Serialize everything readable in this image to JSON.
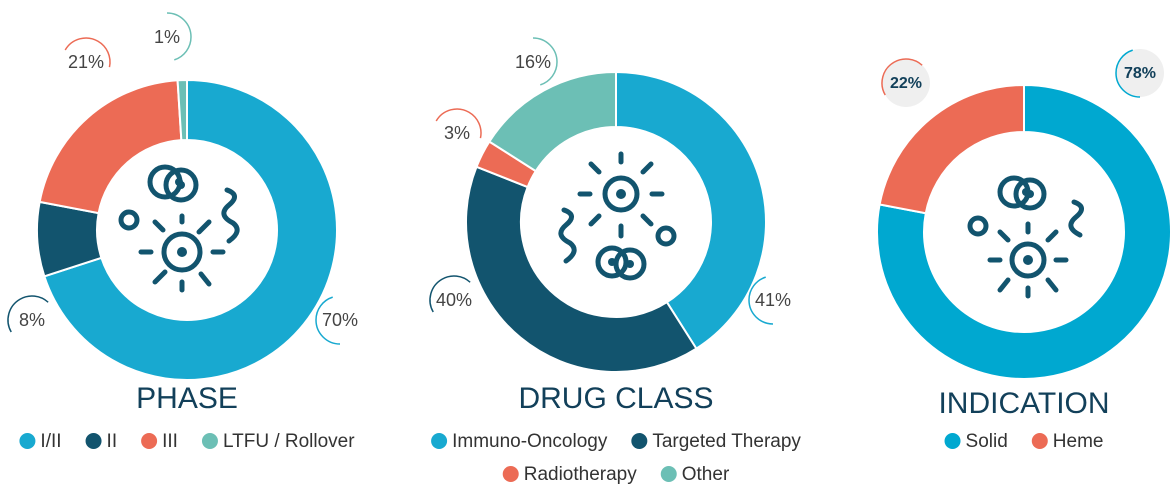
{
  "chart_data": [
    {
      "type": "donut",
      "title": "PHASE",
      "categories": [
        "I/II",
        "II",
        "III",
        "LTFU / Rollover"
      ],
      "values": [
        70,
        8,
        21,
        1
      ],
      "value_labels": [
        "70%",
        "8%",
        "21%",
        "1%"
      ],
      "colors": [
        "#18a9d0",
        "#12546e",
        "#ec6b55",
        "#6cbfb5"
      ]
    },
    {
      "type": "donut",
      "title": "DRUG CLASS",
      "categories": [
        "Immuno-Oncology",
        "Targeted Therapy",
        "Radiotherapy",
        "Other"
      ],
      "values": [
        41,
        40,
        3,
        16
      ],
      "value_labels": [
        "41%",
        "40%",
        "3%",
        "16%"
      ],
      "colors": [
        "#18a9d0",
        "#12546e",
        "#ec6b55",
        "#6cbfb5"
      ]
    },
    {
      "type": "donut",
      "title": "INDICATION",
      "categories": [
        "Solid",
        "Heme"
      ],
      "values": [
        78,
        22
      ],
      "value_labels": [
        "78%",
        "22%"
      ],
      "colors": [
        "#00a8d0",
        "#ec6b55"
      ]
    }
  ]
}
